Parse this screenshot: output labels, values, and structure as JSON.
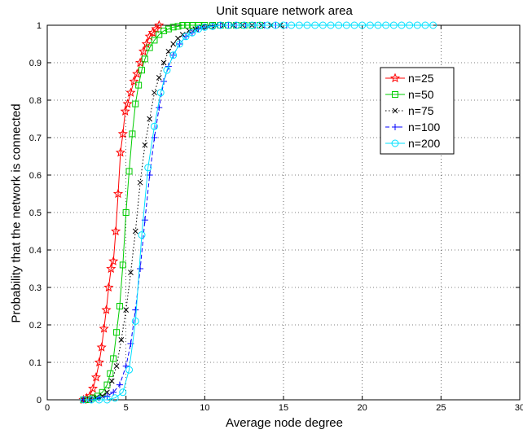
{
  "chart_data": {
    "type": "line",
    "title": "Unit square network area",
    "xlabel": "Average node degree",
    "ylabel": "Probability that the network is connected",
    "xlim": [
      0,
      30
    ],
    "ylim": [
      0,
      1
    ],
    "xticks": [
      "0",
      "5",
      "10",
      "15",
      "20",
      "25",
      "30"
    ],
    "yticks": [
      "0",
      "0.1",
      "0.2",
      "0.3",
      "0.4",
      "0.5",
      "0.6",
      "0.7",
      "0.8",
      "0.9",
      "1"
    ],
    "grid": true,
    "legend_position": "upper-right",
    "series": [
      {
        "name": "n=25",
        "color": "#ff0000",
        "marker": "star",
        "dash": "solid",
        "x": [
          2.3,
          2.5,
          2.7,
          2.9,
          3.1,
          3.3,
          3.45,
          3.6,
          3.75,
          3.9,
          4.05,
          4.2,
          4.35,
          4.5,
          4.65,
          4.8,
          4.95,
          5.1,
          5.3,
          5.5,
          5.7,
          5.9,
          6.1,
          6.3,
          6.5,
          6.7,
          6.9,
          7.1
        ],
        "y": [
          0.0,
          0.005,
          0.01,
          0.03,
          0.06,
          0.1,
          0.14,
          0.19,
          0.24,
          0.3,
          0.35,
          0.37,
          0.45,
          0.55,
          0.66,
          0.71,
          0.77,
          0.79,
          0.82,
          0.85,
          0.87,
          0.9,
          0.93,
          0.95,
          0.97,
          0.98,
          0.99,
          1.0
        ]
      },
      {
        "name": "n=50",
        "color": "#00cc00",
        "marker": "square",
        "dash": "solid",
        "x": [
          2.3,
          2.6,
          2.9,
          3.2,
          3.5,
          3.8,
          4.0,
          4.2,
          4.4,
          4.6,
          4.8,
          5.0,
          5.2,
          5.4,
          5.6,
          5.8,
          6.0,
          6.2,
          6.5,
          6.8,
          7.1,
          7.4,
          7.7,
          8.0,
          8.3,
          8.6,
          8.9,
          9.2,
          9.6,
          10.0,
          10.5,
          11.0,
          11.5,
          12.0,
          12.5,
          13.0,
          13.5
        ],
        "y": [
          0.0,
          0.0,
          0.005,
          0.01,
          0.02,
          0.04,
          0.07,
          0.11,
          0.18,
          0.25,
          0.36,
          0.5,
          0.61,
          0.71,
          0.79,
          0.84,
          0.88,
          0.91,
          0.94,
          0.96,
          0.975,
          0.985,
          0.99,
          0.995,
          0.997,
          1.0,
          1.0,
          1.0,
          1.0,
          1.0,
          1.0,
          1.0,
          1.0,
          1.0,
          1.0,
          1.0,
          1.0
        ]
      },
      {
        "name": "n=75",
        "color": "#000000",
        "marker": "x",
        "dash": "dotted",
        "x": [
          2.3,
          2.7,
          3.1,
          3.5,
          3.8,
          4.1,
          4.4,
          4.7,
          5.0,
          5.3,
          5.6,
          5.9,
          6.2,
          6.5,
          6.8,
          7.1,
          7.4,
          7.7,
          8.0,
          8.3,
          8.6,
          9.0,
          9.4,
          9.8,
          10.2,
          10.7,
          11.2,
          11.8,
          12.4,
          13.0,
          13.6,
          14.2,
          14.8
        ],
        "y": [
          0.0,
          0.0,
          0.005,
          0.01,
          0.02,
          0.05,
          0.09,
          0.16,
          0.24,
          0.34,
          0.45,
          0.58,
          0.68,
          0.75,
          0.82,
          0.86,
          0.9,
          0.93,
          0.95,
          0.965,
          0.975,
          0.985,
          0.99,
          0.995,
          0.997,
          1.0,
          1.0,
          1.0,
          1.0,
          1.0,
          1.0,
          1.0,
          1.0
        ]
      },
      {
        "name": "n=100",
        "color": "#0000ff",
        "marker": "plus",
        "dash": "dashed",
        "x": [
          2.3,
          2.8,
          3.3,
          3.8,
          4.2,
          4.6,
          5.0,
          5.3,
          5.6,
          5.9,
          6.2,
          6.5,
          6.8,
          7.1,
          7.4,
          7.7,
          8.0,
          8.4,
          8.8,
          9.2,
          9.6,
          10.0,
          10.5,
          11.0,
          11.5,
          12.0,
          12.6,
          13.2,
          13.8,
          14.5,
          15.2
        ],
        "y": [
          0.0,
          0.0,
          0.005,
          0.01,
          0.02,
          0.04,
          0.09,
          0.15,
          0.24,
          0.35,
          0.48,
          0.6,
          0.7,
          0.78,
          0.85,
          0.89,
          0.92,
          0.95,
          0.97,
          0.98,
          0.99,
          0.995,
          0.998,
          1.0,
          1.0,
          1.0,
          1.0,
          1.0,
          1.0,
          1.0,
          1.0
        ]
      },
      {
        "name": "n=200",
        "color": "#00e0ff",
        "marker": "circle",
        "dash": "solid",
        "x": [
          2.3,
          2.8,
          3.3,
          3.8,
          4.3,
          4.8,
          5.2,
          5.6,
          6.0,
          6.4,
          6.8,
          7.2,
          7.6,
          8.0,
          8.4,
          8.8,
          9.2,
          9.6,
          10.0,
          10.5,
          11.0,
          11.5,
          12.0,
          12.5,
          13.0,
          13.5,
          14.0,
          14.5,
          15.0,
          15.5,
          16.0,
          16.5,
          17.0,
          17.5,
          18.0,
          18.5,
          19.0,
          19.5,
          20.0,
          20.5,
          21.0,
          21.5,
          22.0,
          22.5,
          23.0,
          23.5,
          24.0,
          24.5
        ],
        "y": [
          0.0,
          0.0,
          0.0,
          0.0,
          0.005,
          0.02,
          0.08,
          0.21,
          0.44,
          0.62,
          0.73,
          0.82,
          0.88,
          0.92,
          0.95,
          0.97,
          0.98,
          0.99,
          0.995,
          0.997,
          1.0,
          1.0,
          1.0,
          1.0,
          1.0,
          1.0,
          1.0,
          1.0,
          1.0,
          1.0,
          1.0,
          1.0,
          1.0,
          1.0,
          1.0,
          1.0,
          1.0,
          1.0,
          1.0,
          1.0,
          1.0,
          1.0,
          1.0,
          1.0,
          1.0,
          1.0,
          1.0,
          1.0
        ]
      }
    ]
  }
}
